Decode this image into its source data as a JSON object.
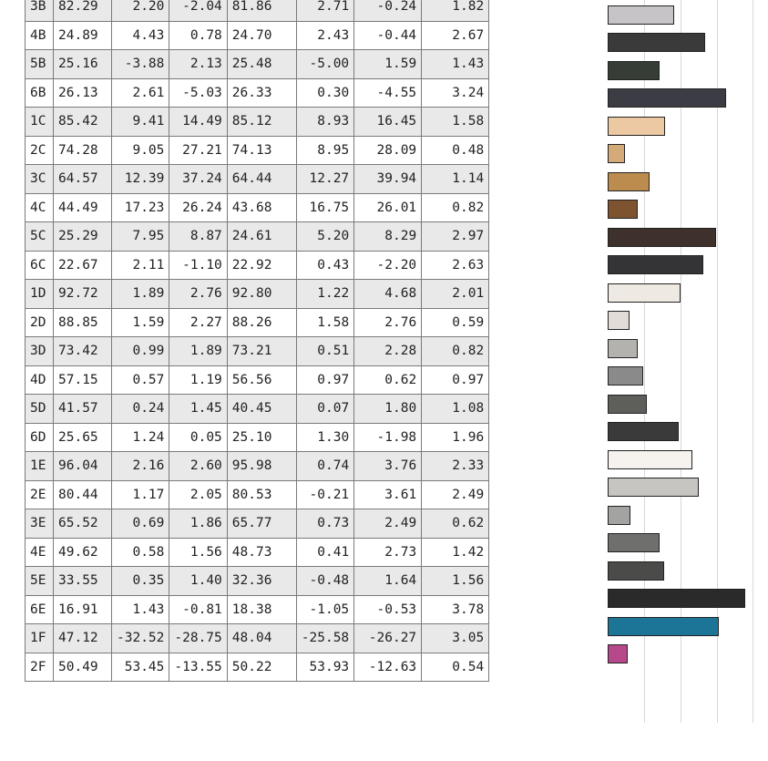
{
  "rows": [
    {
      "id": "3B",
      "v": [
        "82.29",
        "2.20",
        "-2.04",
        "81.86",
        "2.71",
        "-0.24",
        "1.82"
      ],
      "color": "#c6c4c7"
    },
    {
      "id": "4B",
      "v": [
        "24.89",
        "4.43",
        "0.78",
        "24.70",
        "2.43",
        "-0.44",
        "2.67"
      ],
      "color": "#3a3a3a"
    },
    {
      "id": "5B",
      "v": [
        "25.16",
        "-3.88",
        "2.13",
        "25.48",
        "-5.00",
        "1.59",
        "1.43"
      ],
      "color": "#363d36"
    },
    {
      "id": "6B",
      "v": [
        "26.13",
        "2.61",
        "-5.03",
        "26.33",
        "0.30",
        "-4.55",
        "3.24"
      ],
      "color": "#3c3c44"
    },
    {
      "id": "1C",
      "v": [
        "85.42",
        "9.41",
        "14.49",
        "85.12",
        "8.93",
        "16.45",
        "1.58"
      ],
      "color": "#ecc9a3"
    },
    {
      "id": "2C",
      "v": [
        "74.28",
        "9.05",
        "27.21",
        "74.13",
        "8.95",
        "28.09",
        "0.48"
      ],
      "color": "#d4aa78"
    },
    {
      "id": "3C",
      "v": [
        "64.57",
        "12.39",
        "37.24",
        "64.44",
        "12.27",
        "39.94",
        "1.14"
      ],
      "color": "#bb8c4d"
    },
    {
      "id": "4C",
      "v": [
        "44.49",
        "17.23",
        "26.24",
        "43.68",
        "16.75",
        "26.01",
        "0.82"
      ],
      "color": "#7e5330"
    },
    {
      "id": "5C",
      "v": [
        "25.29",
        "7.95",
        "8.87",
        "24.61",
        "5.20",
        "8.29",
        "2.97"
      ],
      "color": "#3e302a"
    },
    {
      "id": "6C",
      "v": [
        "22.67",
        "2.11",
        "-1.10",
        "22.92",
        "0.43",
        "-2.20",
        "2.63"
      ],
      "color": "#343436"
    },
    {
      "id": "1D",
      "v": [
        "92.72",
        "1.89",
        "2.76",
        "92.80",
        "1.22",
        "4.68",
        "2.01"
      ],
      "color": "#efe9e3"
    },
    {
      "id": "2D",
      "v": [
        "88.85",
        "1.59",
        "2.27",
        "88.26",
        "1.58",
        "2.76",
        "0.59"
      ],
      "color": "#e2dcd8"
    },
    {
      "id": "3D",
      "v": [
        "73.42",
        "0.99",
        "1.89",
        "73.21",
        "0.51",
        "2.28",
        "0.82"
      ],
      "color": "#b3b2ae"
    },
    {
      "id": "4D",
      "v": [
        "57.15",
        "0.57",
        "1.19",
        "56.56",
        "0.97",
        "0.62",
        "0.97"
      ],
      "color": "#8a8a8a"
    },
    {
      "id": "5D",
      "v": [
        "41.57",
        "0.24",
        "1.45",
        "40.45",
        "0.07",
        "1.80",
        "1.08"
      ],
      "color": "#5e5e5a"
    },
    {
      "id": "6D",
      "v": [
        "25.65",
        "1.24",
        "0.05",
        "25.10",
        "1.30",
        "-1.98",
        "1.96"
      ],
      "color": "#3a3a3a"
    },
    {
      "id": "1E",
      "v": [
        "96.04",
        "2.16",
        "2.60",
        "95.98",
        "0.74",
        "3.76",
        "2.33"
      ],
      "color": "#f6f2ee"
    },
    {
      "id": "2E",
      "v": [
        "80.44",
        "1.17",
        "2.05",
        "80.53",
        "-0.21",
        "3.61",
        "2.49"
      ],
      "color": "#c6c5c1"
    },
    {
      "id": "3E",
      "v": [
        "65.52",
        "0.69",
        "1.86",
        "65.77",
        "0.73",
        "2.49",
        "0.62"
      ],
      "color": "#a3a3a1"
    },
    {
      "id": "4E",
      "v": [
        "49.62",
        "0.58",
        "1.56",
        "48.73",
        "0.41",
        "2.73",
        "1.42"
      ],
      "color": "#6f6f6d"
    },
    {
      "id": "5E",
      "v": [
        "33.55",
        "0.35",
        "1.40",
        "32.36",
        "-0.48",
        "1.64",
        "1.56"
      ],
      "color": "#4b4b49"
    },
    {
      "id": "6E",
      "v": [
        "16.91",
        "1.43",
        "-0.81",
        "18.38",
        "-1.05",
        "-0.53",
        "3.78"
      ],
      "color": "#2a2a2b"
    },
    {
      "id": "1F",
      "v": [
        "47.12",
        "-32.52",
        "-28.75",
        "48.04",
        "-25.58",
        "-26.27",
        "3.05"
      ],
      "color": "#1c7596"
    },
    {
      "id": "2F",
      "v": [
        "50.49",
        "53.45",
        "-13.55",
        "50.22",
        "53.93",
        "-12.63",
        "0.54"
      ],
      "color": "#b6488b"
    }
  ],
  "bar_scale_max": 4.0
}
